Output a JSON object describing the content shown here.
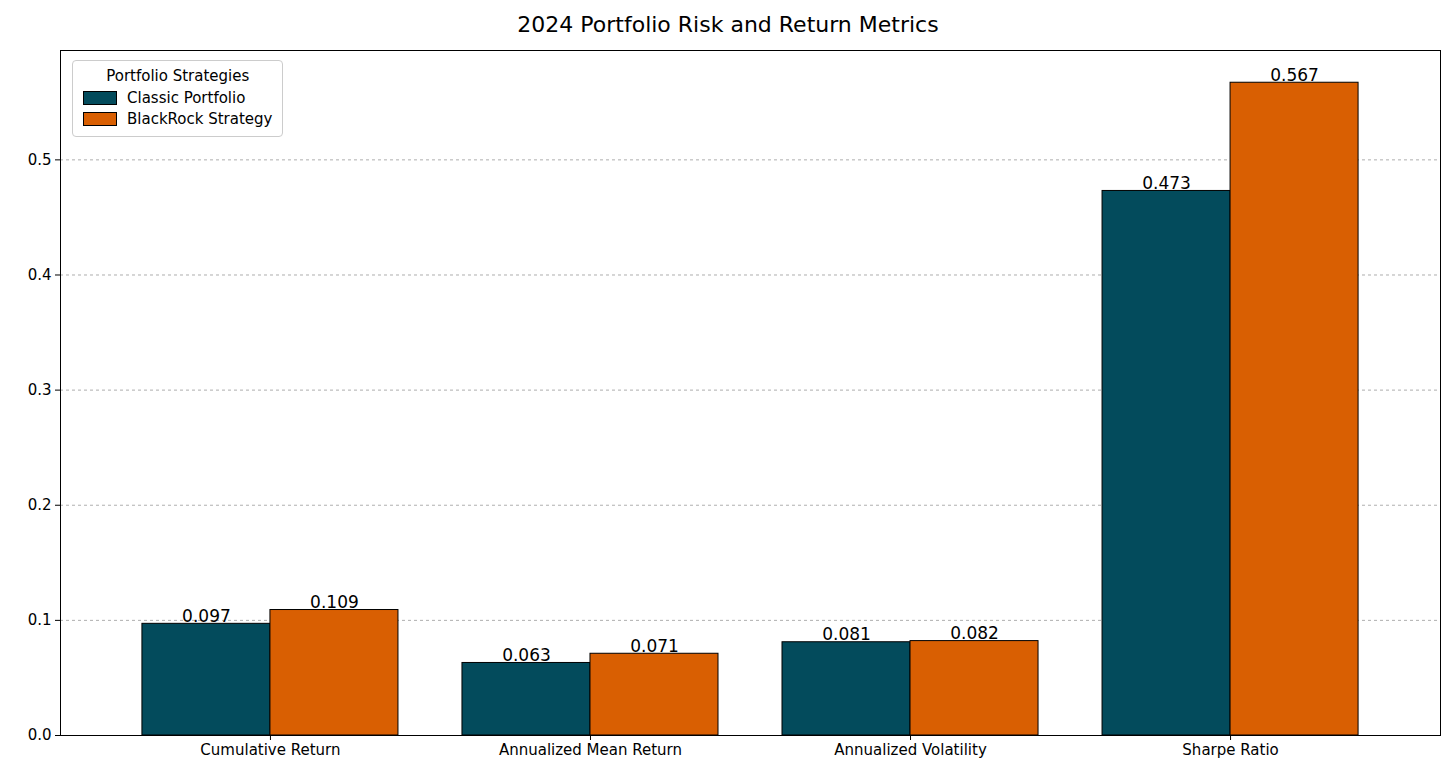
{
  "chart_data": {
    "type": "bar",
    "title": "2024 Portfolio Risk and Return Metrics",
    "categories": [
      "Cumulative Return",
      "Annualized Mean Return",
      "Annualized Volatility",
      "Sharpe Ratio"
    ],
    "series": [
      {
        "name": "Classic Portfolio",
        "color": "#034b5c",
        "values": [
          0.097,
          0.063,
          0.081,
          0.473
        ]
      },
      {
        "name": "BlackRock Strategy",
        "color": "#d95f02",
        "values": [
          0.109,
          0.071,
          0.082,
          0.567
        ]
      }
    ],
    "ylim": [
      0,
      0.595
    ],
    "yticks": [
      {
        "value": 0,
        "label": "0.0"
      },
      0.1,
      0.2,
      0.3,
      0.4,
      0.5
    ],
    "grid": true,
    "data_labels": true,
    "legend": "upper left",
    "legend_title": "Portfolio Strategies"
  }
}
